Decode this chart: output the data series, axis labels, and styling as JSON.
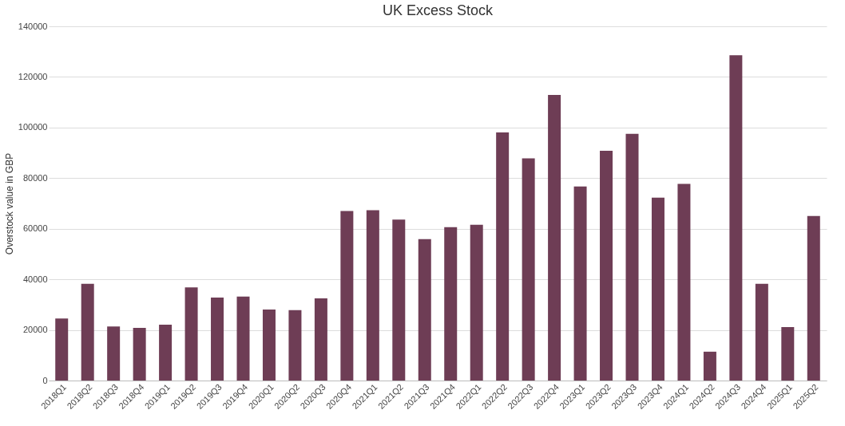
{
  "chart_data": {
    "type": "bar",
    "title": "UK Excess Stock",
    "ylabel": "Overstock value in GBP",
    "categories": [
      "2018Q1",
      "2018Q2",
      "2018Q3",
      "2018Q4",
      "2019Q1",
      "2019Q2",
      "2019Q3",
      "2019Q4",
      "2020Q1",
      "2020Q2",
      "2020Q3",
      "2020Q4",
      "2021Q1",
      "2021Q2",
      "2021Q3",
      "2021Q4",
      "2022Q1",
      "2022Q2",
      "2022Q3",
      "2022Q4",
      "2023Q1",
      "2023Q2",
      "2023Q3",
      "2023Q4",
      "2024Q1",
      "2024Q2",
      "2024Q3",
      "2024Q4",
      "2025Q1",
      "2025Q2"
    ],
    "values": [
      24500,
      38200,
      21400,
      20800,
      22100,
      36800,
      32800,
      33200,
      28100,
      27800,
      32500,
      67000,
      67300,
      63600,
      55900,
      60600,
      61600,
      98100,
      87800,
      112900,
      76700,
      90800,
      97500,
      72300,
      77700,
      11400,
      128600,
      38200,
      21100,
      65000
    ],
    "color": "#6e3d55",
    "ylim": [
      0,
      140000
    ],
    "yticks": [
      0,
      20000,
      40000,
      60000,
      80000,
      100000,
      120000,
      140000
    ],
    "grid": "y"
  }
}
